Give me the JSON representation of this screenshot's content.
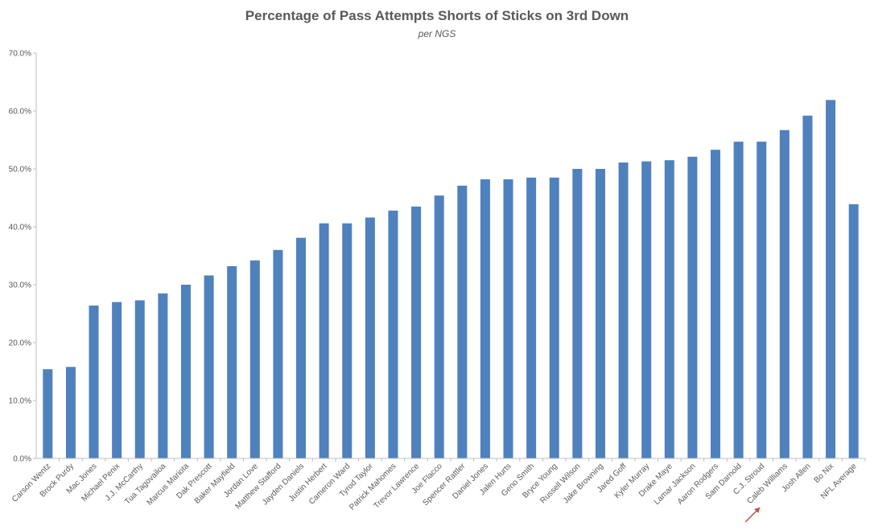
{
  "chart_data": {
    "type": "bar",
    "title": "Percentage of Pass Attempts Shorts of Sticks on 3rd Down",
    "subtitle": "per NGS",
    "xlabel": "",
    "ylabel": "",
    "ylim": [
      0,
      70
    ],
    "yticks": [
      0,
      10,
      20,
      30,
      40,
      50,
      60,
      70
    ],
    "ytick_labels": [
      "0.0%",
      "10.0%",
      "20.0%",
      "30.0%",
      "40.0%",
      "50.0%",
      "60.0%",
      "70.0%"
    ],
    "grid": false,
    "legend": "none",
    "bar_color": "#4f81bd",
    "axis_color": "#bfbfbf",
    "annotation": {
      "type": "arrow",
      "target": "C.J. Stroud",
      "color": "#c0504d"
    },
    "categories": [
      "Carson Wentz",
      "Brock Purdy",
      "Mac Jones",
      "Michael Penix",
      "J.J. McCarthy",
      "Tua Tagovailoa",
      "Marcus Mariota",
      "Dak Prescott",
      "Baker Mayfield",
      "Jordan Love",
      "Matthew Stafford",
      "Jayden Daniels",
      "Justin Herbert",
      "Cameron Ward",
      "Tyrod Taylor",
      "Patrick Mahomes",
      "Trevor Lawrence",
      "Joe Flacco",
      "Spencer Rattler",
      "Daniel Jones",
      "Jalen Hurts",
      "Geno Smith",
      "Bryce Young",
      "Russell Wilson",
      "Jake Browning",
      "Jared Goff",
      "Kyler Murray",
      "Drake Maye",
      "Lamar Jackson",
      "Aaron Rodgers",
      "Sam Darnold",
      "C.J. Stroud",
      "Caleb Williams",
      "Josh Allen",
      "Bo Nix",
      "NFL Average"
    ],
    "values": [
      15.4,
      15.8,
      26.4,
      27.0,
      27.3,
      28.5,
      30.0,
      31.6,
      33.2,
      34.2,
      36.0,
      38.1,
      40.6,
      40.6,
      41.6,
      42.8,
      43.5,
      45.4,
      47.1,
      48.2,
      48.2,
      48.5,
      48.5,
      50.0,
      50.0,
      51.1,
      51.3,
      51.5,
      52.1,
      53.3,
      54.7,
      54.7,
      56.7,
      59.2,
      61.9,
      43.9
    ]
  }
}
